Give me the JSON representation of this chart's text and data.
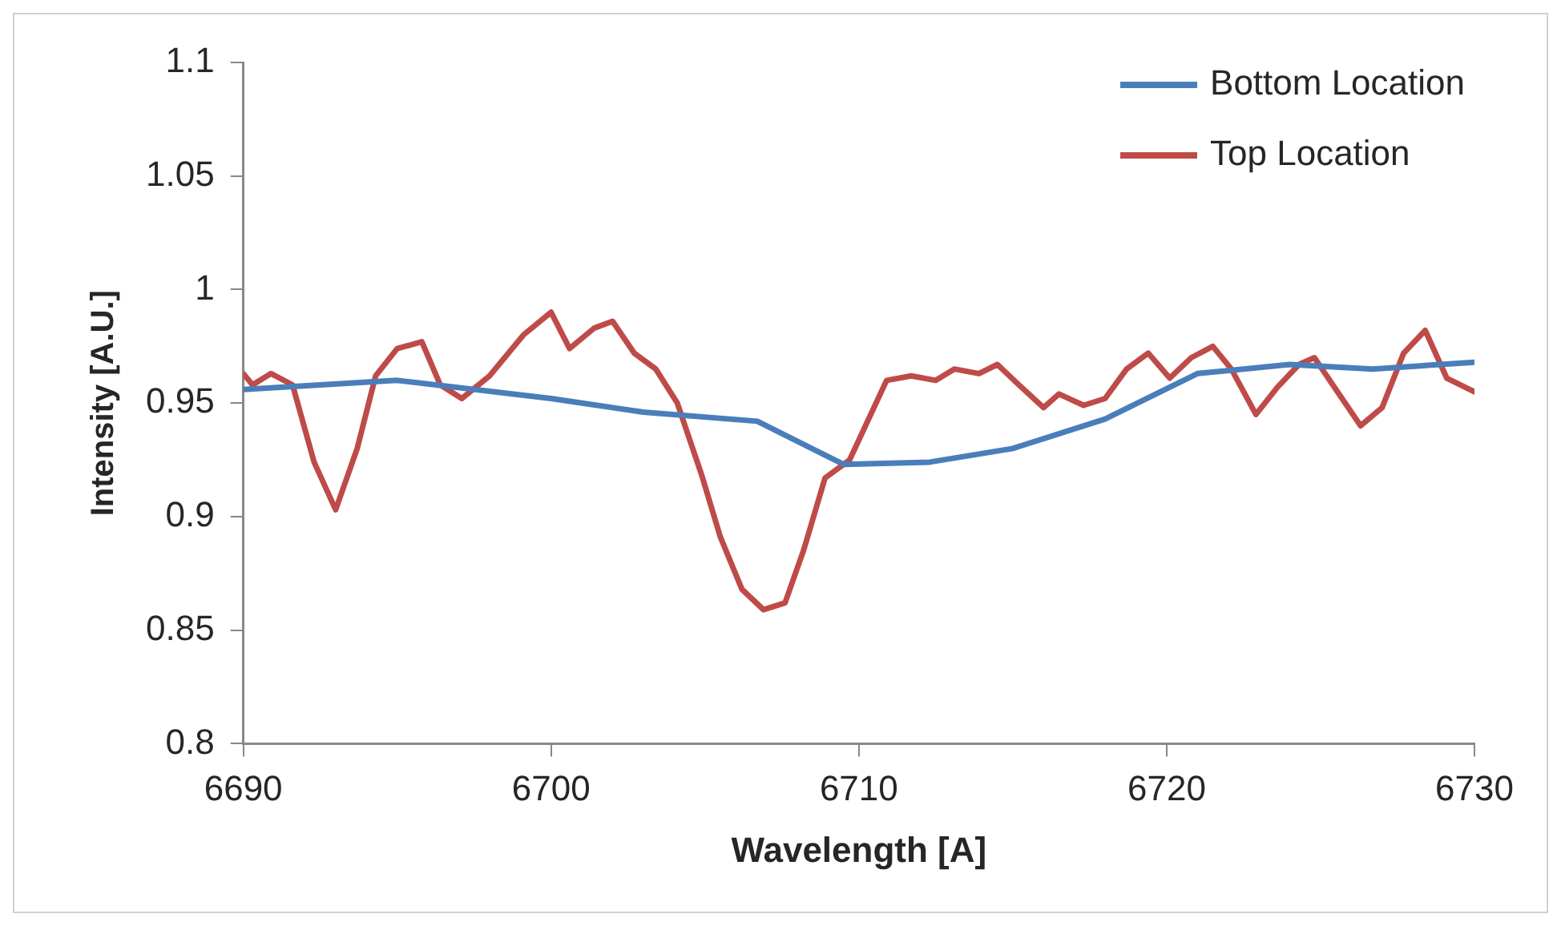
{
  "chart_data": {
    "type": "line",
    "xlabel": "Wavelength [A]",
    "ylabel": "Intensity [A.U.]",
    "xlim": [
      6690,
      6730
    ],
    "xticks": [
      6690,
      6700,
      6710,
      6720,
      6730
    ],
    "ylim": [
      0.8,
      1.1
    ],
    "yticks": [
      0.8,
      0.85,
      0.9,
      0.95,
      1,
      1.05,
      1.1
    ],
    "grid": false,
    "legend": "top right",
    "marker": "none",
    "line_style": "solid",
    "series": [
      {
        "name": "Bottom Location",
        "color": "#4a7ebb",
        "x": [
          6690,
          6695,
          6700,
          6703,
          6706.7,
          6709.5,
          6712.3,
          6715,
          6718,
          6721,
          6724,
          6726.7,
          6730
        ],
        "values": [
          0.956,
          0.96,
          0.952,
          0.946,
          0.942,
          0.923,
          0.924,
          0.93,
          0.943,
          0.963,
          0.967,
          0.965,
          0.968
        ]
      },
      {
        "name": "Top Location",
        "color": "#be4b48",
        "x": [
          6690,
          6690.3,
          6690.9,
          6691.6,
          6692.3,
          6693,
          6693.7,
          6694.3,
          6695,
          6695.8,
          6696.4,
          6697.1,
          6698,
          6699.1,
          6700,
          6700.6,
          6701.4,
          6702,
          6702.7,
          6703.4,
          6704.1,
          6704.9,
          6705.5,
          6706.2,
          6706.9,
          6707.6,
          6708.2,
          6708.9,
          6709.7,
          6710.9,
          6711.7,
          6712.5,
          6713.1,
          6713.9,
          6714.5,
          6715.2,
          6716,
          6716.5,
          6717.3,
          6718,
          6718.7,
          6719.4,
          6720.1,
          6720.8,
          6721.5,
          6722.1,
          6722.9,
          6723.6,
          6724.3,
          6724.8,
          6725.5,
          6726.3,
          6727,
          6727.7,
          6728.4,
          6729.1,
          6730
        ],
        "values": [
          0.963,
          0.958,
          0.963,
          0.958,
          0.924,
          0.903,
          0.93,
          0.962,
          0.974,
          0.977,
          0.958,
          0.952,
          0.962,
          0.98,
          0.99,
          0.974,
          0.983,
          0.986,
          0.972,
          0.965,
          0.95,
          0.918,
          0.891,
          0.868,
          0.859,
          0.862,
          0.885,
          0.917,
          0.925,
          0.96,
          0.962,
          0.96,
          0.965,
          0.963,
          0.967,
          0.958,
          0.948,
          0.954,
          0.949,
          0.952,
          0.965,
          0.972,
          0.961,
          0.97,
          0.975,
          0.965,
          0.945,
          0.957,
          0.967,
          0.97,
          0.956,
          0.94,
          0.948,
          0.972,
          0.982,
          0.961,
          0.955
        ]
      }
    ]
  }
}
